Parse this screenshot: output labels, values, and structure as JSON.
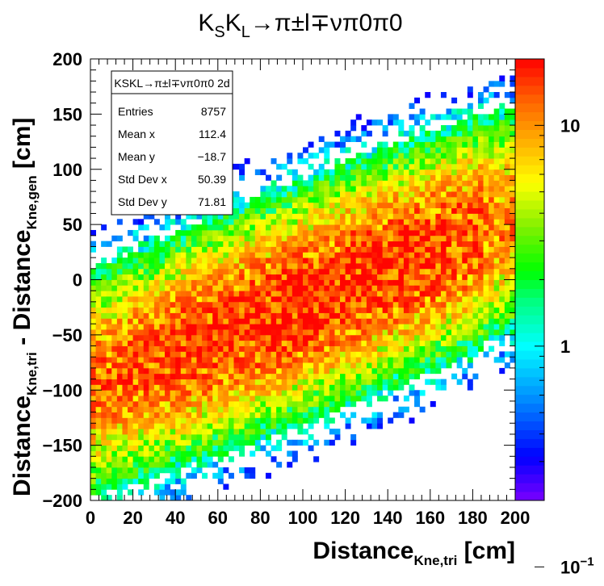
{
  "chart_data": {
    "type": "heatmap",
    "title": "KSKL→π±l∓νπ0π0",
    "title_parts": {
      "k1": "K",
      "s": "S",
      "k2": "K",
      "l": "L",
      "rest": "→π±l∓νπ0π0"
    },
    "xlabel": "Distance",
    "xlabel_sub": "Kne,tri",
    "xlabel_unit": " [cm]",
    "ylabel": "Distance",
    "ylabel_sub1": "Kne,tri",
    "ylabel_mid": " - Distance",
    "ylabel_sub2": "Kne,gen",
    "ylabel_unit": " [cm]",
    "xlim": [
      0,
      200
    ],
    "ylim": [
      -200,
      200
    ],
    "x_ticks": [
      0,
      20,
      40,
      60,
      80,
      100,
      120,
      140,
      160,
      180,
      200
    ],
    "x_tick_labels": [
      "0",
      "20",
      "40",
      "60",
      "80",
      "100",
      "120",
      "140",
      "160",
      "180",
      "200"
    ],
    "y_ticks": [
      -200,
      -150,
      -100,
      -50,
      0,
      50,
      100,
      150,
      200
    ],
    "y_tick_labels": [
      "−200",
      "−150",
      "−100",
      "−50",
      "0",
      "50",
      "100",
      "150",
      "200"
    ],
    "z_scale": "log",
    "z_range": [
      0.2,
      20
    ],
    "z_tick_labels": [
      {
        "value": 0.1,
        "base": "10",
        "exp": "−1"
      },
      {
        "value": 1,
        "base": "1",
        "exp": ""
      },
      {
        "value": 10,
        "base": "10",
        "exp": ""
      }
    ],
    "bins": {
      "nx": 80,
      "ny": 80
    },
    "distribution": {
      "ridge_center_y_at_x0": -95,
      "ridge_slope": 0.75,
      "ridge_sigma": 50,
      "x_peak": 110,
      "max_count": 18
    },
    "stats_box": {
      "title": "KSKL→π±l∓νπ0π0 2d",
      "rows": [
        {
          "label": "Entries",
          "value": "8757"
        },
        {
          "label": "Mean x",
          "value": "112.4"
        },
        {
          "label": "Mean y",
          "value": "−18.7"
        },
        {
          "label": "Std Dev x",
          "value": "50.39"
        },
        {
          "label": "Std Dev y",
          "value": "71.81"
        }
      ]
    },
    "grid": false,
    "legend": "none"
  }
}
